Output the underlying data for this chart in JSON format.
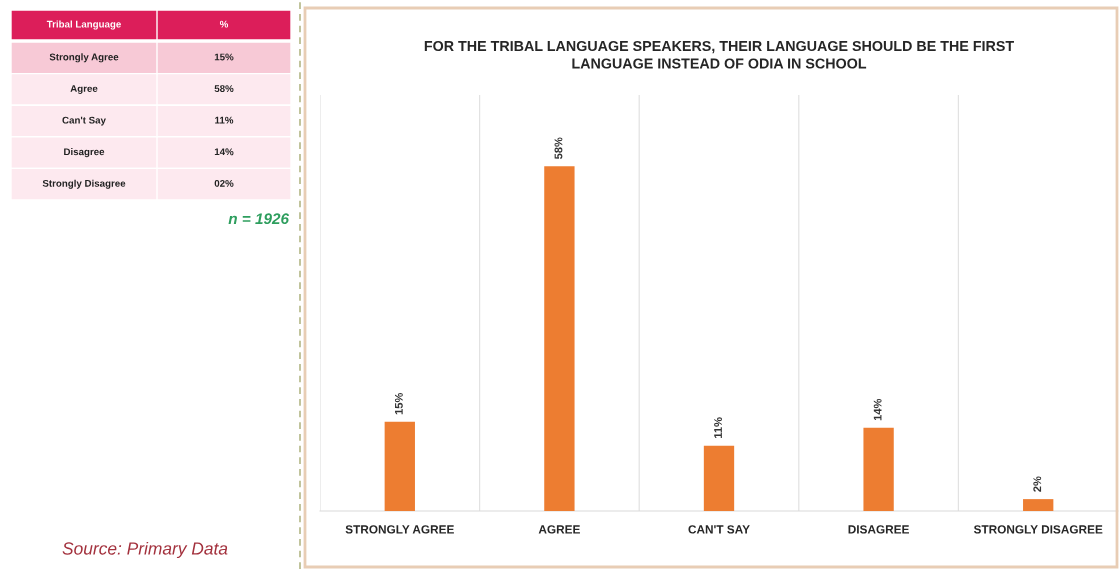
{
  "chart_data": [
    {
      "type": "other",
      "categories": [
        "Tribal Language",
        "Strongly Agree",
        "Agree",
        "Can't Say",
        "Disagree",
        "Strongly Disagree"
      ],
      "value_labels": [
        "%",
        "15%",
        "58%",
        "11%",
        "14%",
        "02%"
      ],
      "annotations": [
        "n = 1926",
        "Source: Primary Data"
      ]
    },
    {
      "type": "bar",
      "title": "FOR THE TRIBAL LANGUAGE SPEAKERS, THEIR LANGUAGE SHOULD BE THE FIRST LANGUAGE INSTEAD OF ODIA IN SCHOOL",
      "categories": [
        "STRONGLY AGREE",
        "AGREE",
        "CAN'T SAY",
        "DISAGREE",
        "STRONGLY DISAGREE"
      ],
      "values": [
        15,
        58,
        11,
        14,
        2
      ],
      "color": "#ed7d31",
      "value_labels": [
        "15%",
        "58%",
        "11%",
        "14%",
        "2%"
      ],
      "ylim": [
        0,
        70
      ],
      "tick_labels": "x",
      "grid": "x"
    }
  ]
}
